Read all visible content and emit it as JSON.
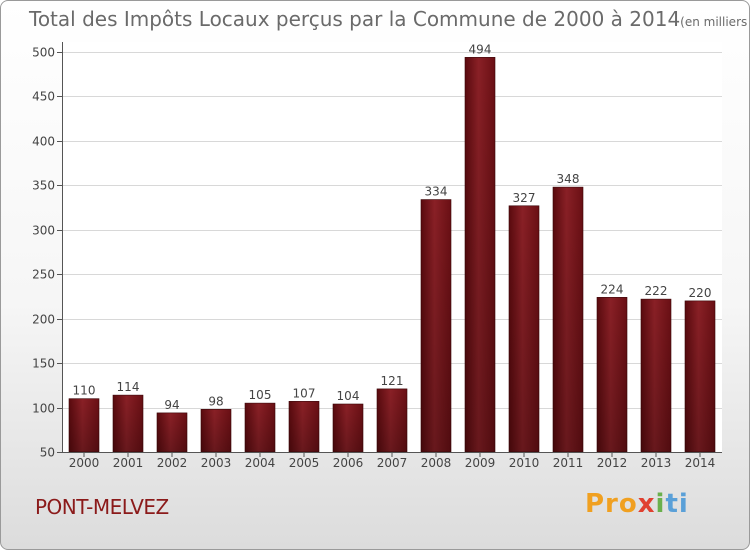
{
  "chart_data": {
    "type": "bar",
    "title": "Total des Impôts Locaux perçus par la Commune de 2000 à 2014",
    "unit_note": "(en milliers d'€)",
    "categories": [
      "2000",
      "2001",
      "2002",
      "2003",
      "2004",
      "2005",
      "2006",
      "2007",
      "2008",
      "2009",
      "2010",
      "2011",
      "2012",
      "2013",
      "2014"
    ],
    "values": [
      110,
      114,
      94,
      98,
      105,
      107,
      104,
      121,
      334,
      494,
      327,
      348,
      224,
      222,
      220
    ],
    "ylim": [
      50,
      500
    ],
    "yticks": [
      50,
      100,
      150,
      200,
      250,
      300,
      350,
      400,
      450,
      500
    ],
    "grid": true,
    "bar_color": "#7a1418"
  },
  "footer": {
    "commune": "PONT-MELVEZ",
    "brand": [
      "Pro",
      "x",
      "i",
      "ti"
    ]
  }
}
